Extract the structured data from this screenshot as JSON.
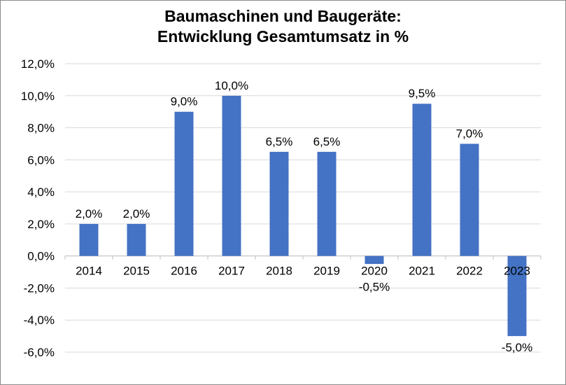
{
  "chart_data": {
    "type": "bar",
    "title_line1": "Baumaschinen und Baugeräte:",
    "title_line2": "Entwicklung Gesamtumsatz in %",
    "categories": [
      "2014",
      "2015",
      "2016",
      "2017",
      "2018",
      "2019",
      "2020",
      "2021",
      "2022",
      "2023"
    ],
    "values": [
      2.0,
      2.0,
      9.0,
      10.0,
      6.5,
      6.5,
      -0.5,
      9.5,
      7.0,
      -5.0
    ],
    "data_labels": [
      "2,0%",
      "2,0%",
      "9,0%",
      "10,0%",
      "6,5%",
      "6,5%",
      "-0,5%",
      "9,5%",
      "7,0%",
      "-5,0%"
    ],
    "xlabel": "",
    "ylabel": "",
    "ylim": [
      -6,
      12
    ],
    "yticks": [
      -6,
      -4,
      -2,
      0,
      2,
      4,
      6,
      8,
      10,
      12
    ],
    "ytick_labels": [
      "-6,0%",
      "-4,0%",
      "-2,0%",
      "0,0%",
      "2,0%",
      "4,0%",
      "6,0%",
      "8,0%",
      "10,0%",
      "12,0%"
    ],
    "grid": true,
    "legend": "none",
    "bar_color": "#4472C4"
  }
}
